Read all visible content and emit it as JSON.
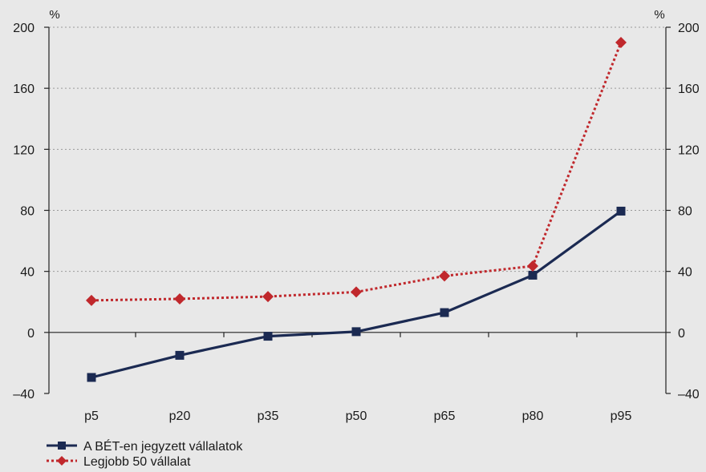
{
  "chart_data": {
    "type": "line",
    "categories": [
      "p5",
      "p20",
      "p35",
      "p50",
      "p65",
      "p80",
      "p95"
    ],
    "series": [
      {
        "name": "A BÉT-en jegyzett vállalatok",
        "values": [
          -29.5,
          -15,
          -2.5,
          0.5,
          13,
          37.5,
          79.5
        ],
        "color": "#1b2a52",
        "marker": "square",
        "line_style": "solid"
      },
      {
        "name": "Legjobb 50 vállalat",
        "values": [
          21,
          22,
          23.5,
          26.5,
          37,
          43.5,
          190
        ],
        "color": "#c0282c",
        "marker": "diamond",
        "line_style": "dotted"
      }
    ],
    "ylim": [
      -40,
      200
    ],
    "yticks": [
      -40,
      0,
      40,
      80,
      120,
      160,
      200
    ],
    "yticks_labels": [
      "–40",
      "0",
      "40",
      "80",
      "120",
      "160",
      "200"
    ],
    "y_unit_left": "%",
    "y_unit_right": "%",
    "grid": "horizontal-dotted",
    "legend_position": "bottom-left"
  }
}
